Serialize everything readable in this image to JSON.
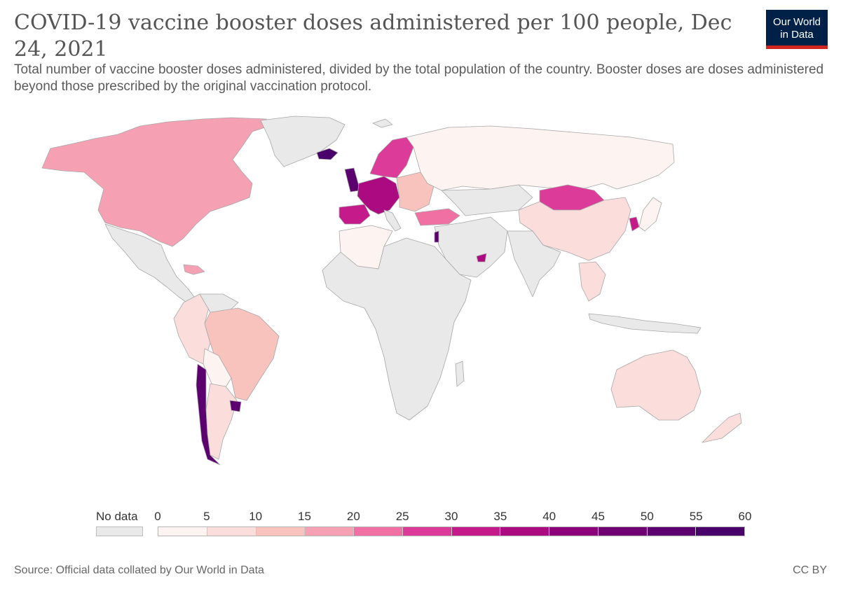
{
  "header": {
    "title": "COVID-19 vaccine booster doses administered per 100 people, Dec 24, 2021",
    "subtitle": "Total number of vaccine booster doses administered, divided by the total population of the country. Booster doses are doses administered beyond those prescribed by the original vaccination protocol."
  },
  "logo": {
    "line1": "Our World",
    "line2": "in Data",
    "bg_color": "#002147",
    "accent_color": "#ce261e"
  },
  "legend": {
    "no_data_label": "No data",
    "no_data_color": "#e9e9e9",
    "ticks": [
      "0",
      "5",
      "10",
      "15",
      "20",
      "25",
      "30",
      "35",
      "40",
      "45",
      "50",
      "55",
      "60"
    ],
    "colors": [
      "#fdf3f0",
      "#fbdedb",
      "#f8c2bd",
      "#f6a1b3",
      "#f070a3",
      "#dc3b99",
      "#c51b8a",
      "#ab0a80",
      "#8b0179",
      "#700173",
      "#5b006e",
      "#49006a"
    ]
  },
  "regions": [
    {
      "name": "North America (Canada & USA)",
      "bin": 3
    },
    {
      "name": "Greenland",
      "bin": null
    },
    {
      "name": "Mexico & Central America",
      "bin": null
    },
    {
      "name": "Caribbean",
      "bin": 3
    },
    {
      "name": "Brazil",
      "bin": 2
    },
    {
      "name": "Colombia & Peru",
      "bin": 1
    },
    {
      "name": "Bolivia",
      "bin": 0
    },
    {
      "name": "Argentina",
      "bin": 1
    },
    {
      "name": "Chile",
      "bin": 10
    },
    {
      "name": "Uruguay",
      "bin": 10
    },
    {
      "name": "Iceland",
      "bin": 11
    },
    {
      "name": "United Kingdom",
      "bin": 10
    },
    {
      "name": "Western Europe",
      "bin": 7
    },
    {
      "name": "Spain & Portugal",
      "bin": 6
    },
    {
      "name": "Scandinavia",
      "bin": 5
    },
    {
      "name": "Eastern Europe",
      "bin": 2
    },
    {
      "name": "Turkey",
      "bin": 4
    },
    {
      "name": "Russia",
      "bin": 0
    },
    {
      "name": "Mongolia",
      "bin": 5
    },
    {
      "name": "China",
      "bin": 1
    },
    {
      "name": "South Korea",
      "bin": 6
    },
    {
      "name": "Israel",
      "bin": 10
    },
    {
      "name": "United Arab Emirates",
      "bin": 7
    },
    {
      "name": "North Africa",
      "bin": 0
    },
    {
      "name": "Africa",
      "bin": null
    },
    {
      "name": "Middle East",
      "bin": null
    },
    {
      "name": "India",
      "bin": null
    },
    {
      "name": "Southeast Asia",
      "bin": 1
    },
    {
      "name": "Australia",
      "bin": 1
    },
    {
      "name": "New Zealand",
      "bin": 1
    },
    {
      "name": "Japan",
      "bin": 0
    }
  ],
  "footer": {
    "source": "Source: Official data collated by Our World in Data",
    "license": "CC BY"
  }
}
